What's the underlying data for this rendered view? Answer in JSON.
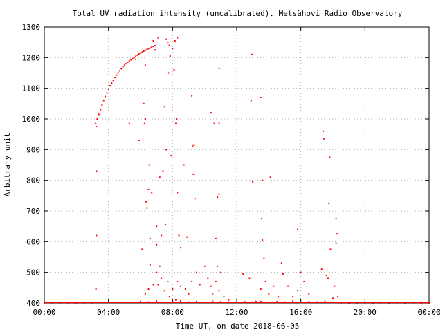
{
  "chart_data": {
    "type": "scatter",
    "title": "Total UV radiation intensity (uncalibrated). Metsähovi Radio Observatory",
    "xlabel": "Time UT, on date 2018-06-05",
    "ylabel": "Arbitrary unit",
    "xlim": [
      0,
      24
    ],
    "ylim": [
      400,
      1300
    ],
    "x_unit": "hours UT",
    "grid": true,
    "grid_style": "dotted",
    "legend": "none",
    "point_color": "#ff0000",
    "xticks": [
      0,
      4,
      8,
      12,
      16,
      20,
      24
    ],
    "xtick_labels": [
      "00:00",
      "04:00",
      "08:00",
      "12:00",
      "16:00",
      "20:00",
      "00:00"
    ],
    "yticks": [
      400,
      500,
      600,
      700,
      800,
      900,
      1000,
      1100,
      1200,
      1300
    ],
    "ytick_labels": [
      "400",
      "500",
      "600",
      "700",
      "800",
      "900",
      "1000",
      "1100",
      "1200",
      "1300"
    ],
    "series": [
      {
        "points": [
          [
            0.0,
            400
          ],
          [
            0.5,
            400
          ],
          [
            1.0,
            400
          ],
          [
            1.5,
            400
          ],
          [
            2.0,
            400
          ],
          [
            2.5,
            400
          ],
          [
            3.0,
            400
          ],
          [
            3.2,
            985
          ],
          [
            3.3,
            1000
          ],
          [
            3.4,
            1015
          ],
          [
            3.5,
            1030
          ],
          [
            3.6,
            1045
          ],
          [
            3.7,
            1060
          ],
          [
            3.8,
            1073
          ],
          [
            3.9,
            1085
          ],
          [
            4.0,
            1097
          ],
          [
            4.1,
            1108
          ],
          [
            4.2,
            1117
          ],
          [
            4.3,
            1126
          ],
          [
            4.4,
            1135
          ],
          [
            4.5,
            1143
          ],
          [
            4.6,
            1150
          ],
          [
            4.7,
            1157
          ],
          [
            4.8,
            1164
          ],
          [
            4.9,
            1170
          ],
          [
            5.0,
            1175
          ],
          [
            5.1,
            1180
          ],
          [
            5.2,
            1185
          ],
          [
            5.3,
            1189
          ],
          [
            5.4,
            1193
          ],
          [
            5.5,
            1197
          ],
          [
            5.6,
            1200
          ],
          [
            5.7,
            1204
          ],
          [
            5.8,
            1208
          ],
          [
            5.9,
            1212
          ],
          [
            6.0,
            1215
          ],
          [
            6.1,
            1218
          ],
          [
            6.2,
            1221
          ],
          [
            6.3,
            1224
          ],
          [
            6.4,
            1227
          ],
          [
            6.5,
            1229
          ],
          [
            6.6,
            1232
          ],
          [
            6.7,
            1235
          ],
          [
            6.8,
            1237
          ],
          [
            6.9,
            1239
          ],
          [
            3.22,
            445
          ],
          [
            3.25,
            620
          ],
          [
            3.25,
            830
          ],
          [
            3.25,
            975
          ],
          [
            5.3,
            985
          ],
          [
            5.7,
            1195
          ],
          [
            5.9,
            930
          ],
          [
            6.1,
            575
          ],
          [
            6.2,
            1050
          ],
          [
            6.25,
            985
          ],
          [
            6.3,
            1000
          ],
          [
            6.3,
            1175
          ],
          [
            6.35,
            730
          ],
          [
            6.4,
            710
          ],
          [
            6.5,
            770
          ],
          [
            6.55,
            850
          ],
          [
            6.6,
            610
          ],
          [
            6.6,
            525
          ],
          [
            6.7,
            760
          ],
          [
            6.8,
            1255
          ],
          [
            6.9,
            1225
          ],
          [
            7.0,
            650
          ],
          [
            7.0,
            590
          ],
          [
            7.1,
            460
          ],
          [
            7.1,
            1265
          ],
          [
            7.2,
            810
          ],
          [
            7.3,
            620
          ],
          [
            7.4,
            830
          ],
          [
            7.5,
            1040
          ],
          [
            7.55,
            655
          ],
          [
            7.6,
            900
          ],
          [
            7.6,
            1260
          ],
          [
            7.7,
            1250
          ],
          [
            7.75,
            1150
          ],
          [
            7.8,
            1240
          ],
          [
            7.85,
            1205
          ],
          [
            7.9,
            880
          ],
          [
            8.0,
            1230
          ],
          [
            8.1,
            1160
          ],
          [
            8.15,
            1255
          ],
          [
            8.2,
            985
          ],
          [
            8.25,
            1000
          ],
          [
            8.3,
            760
          ],
          [
            8.3,
            1265
          ],
          [
            8.4,
            620
          ],
          [
            8.5,
            580
          ],
          [
            8.7,
            850
          ],
          [
            8.9,
            615
          ],
          [
            9.2,
            1075
          ],
          [
            9.25,
            910
          ],
          [
            9.3,
            915
          ],
          [
            9.3,
            820
          ],
          [
            9.4,
            740
          ],
          [
            10.4,
            1020
          ],
          [
            10.6,
            985
          ],
          [
            10.7,
            610
          ],
          [
            10.8,
            745
          ],
          [
            10.9,
            985
          ],
          [
            10.9,
            1165
          ],
          [
            10.9,
            755
          ],
          [
            12.9,
            1060
          ],
          [
            12.95,
            1210
          ],
          [
            13.0,
            795
          ],
          [
            13.5,
            1070
          ],
          [
            13.55,
            675
          ],
          [
            13.6,
            800
          ],
          [
            13.6,
            605
          ],
          [
            13.7,
            545
          ],
          [
            14.1,
            810
          ],
          [
            15.8,
            640
          ],
          [
            16.0,
            500
          ],
          [
            17.4,
            960
          ],
          [
            17.45,
            935
          ],
          [
            17.8,
            875
          ],
          [
            17.75,
            725
          ],
          [
            17.85,
            575
          ],
          [
            18.2,
            675
          ],
          [
            18.25,
            625
          ],
          [
            18.2,
            595
          ],
          [
            6.3,
            430
          ],
          [
            6.5,
            445
          ],
          [
            6.8,
            460
          ],
          [
            7.0,
            500
          ],
          [
            7.2,
            520
          ],
          [
            7.3,
            480
          ],
          [
            7.5,
            440
          ],
          [
            7.7,
            470
          ],
          [
            7.8,
            420
          ],
          [
            8.0,
            445
          ],
          [
            8.2,
            410
          ],
          [
            8.3,
            470
          ],
          [
            8.5,
            455
          ],
          [
            8.8,
            445
          ],
          [
            9.0,
            430
          ],
          [
            9.2,
            470
          ],
          [
            9.5,
            500
          ],
          [
            9.7,
            460
          ],
          [
            10.0,
            520
          ],
          [
            10.2,
            480
          ],
          [
            10.4,
            455
          ],
          [
            10.5,
            430
          ],
          [
            10.7,
            470
          ],
          [
            10.8,
            520
          ],
          [
            10.9,
            440
          ],
          [
            11.0,
            500
          ],
          [
            11.2,
            420
          ],
          [
            11.5,
            410
          ],
          [
            12.4,
            495
          ],
          [
            12.8,
            480
          ],
          [
            13.2,
            405
          ],
          [
            13.5,
            445
          ],
          [
            13.8,
            470
          ],
          [
            14.0,
            430
          ],
          [
            14.3,
            455
          ],
          [
            14.6,
            420
          ],
          [
            14.8,
            530
          ],
          [
            14.9,
            495
          ],
          [
            15.2,
            455
          ],
          [
            15.5,
            420
          ],
          [
            15.8,
            440
          ],
          [
            16.2,
            470
          ],
          [
            16.5,
            430
          ],
          [
            17.3,
            510
          ],
          [
            17.6,
            490
          ],
          [
            17.7,
            480
          ],
          [
            18.0,
            415
          ],
          [
            18.1,
            455
          ],
          [
            18.3,
            420
          ],
          [
            6.0,
            405
          ],
          [
            6.5,
            403
          ],
          [
            7.0,
            406
          ],
          [
            7.5,
            402
          ],
          [
            8.0,
            404
          ],
          [
            8.5,
            407
          ],
          [
            9.0,
            403
          ],
          [
            9.5,
            405
          ],
          [
            10.0,
            402
          ],
          [
            10.5,
            406
          ],
          [
            11.0,
            404
          ],
          [
            11.5,
            403
          ],
          [
            12.0,
            402
          ],
          [
            12.5,
            404
          ],
          [
            13.0,
            403
          ],
          [
            13.5,
            405
          ],
          [
            14.0,
            402
          ],
          [
            14.5,
            404
          ],
          [
            15.0,
            403
          ],
          [
            15.5,
            406
          ],
          [
            16.0,
            402
          ],
          [
            16.5,
            404
          ],
          [
            17.0,
            403
          ],
          [
            17.5,
            405
          ],
          [
            18.0,
            402
          ],
          [
            18.5,
            400
          ],
          [
            19.0,
            400
          ],
          [
            19.5,
            400
          ],
          [
            20.0,
            400
          ],
          [
            20.5,
            400
          ],
          [
            21.0,
            400
          ],
          [
            21.5,
            400
          ],
          [
            22.0,
            400
          ],
          [
            22.5,
            400
          ],
          [
            23.0,
            400
          ],
          [
            23.5,
            400
          ],
          [
            24.0,
            400
          ]
        ]
      }
    ]
  }
}
